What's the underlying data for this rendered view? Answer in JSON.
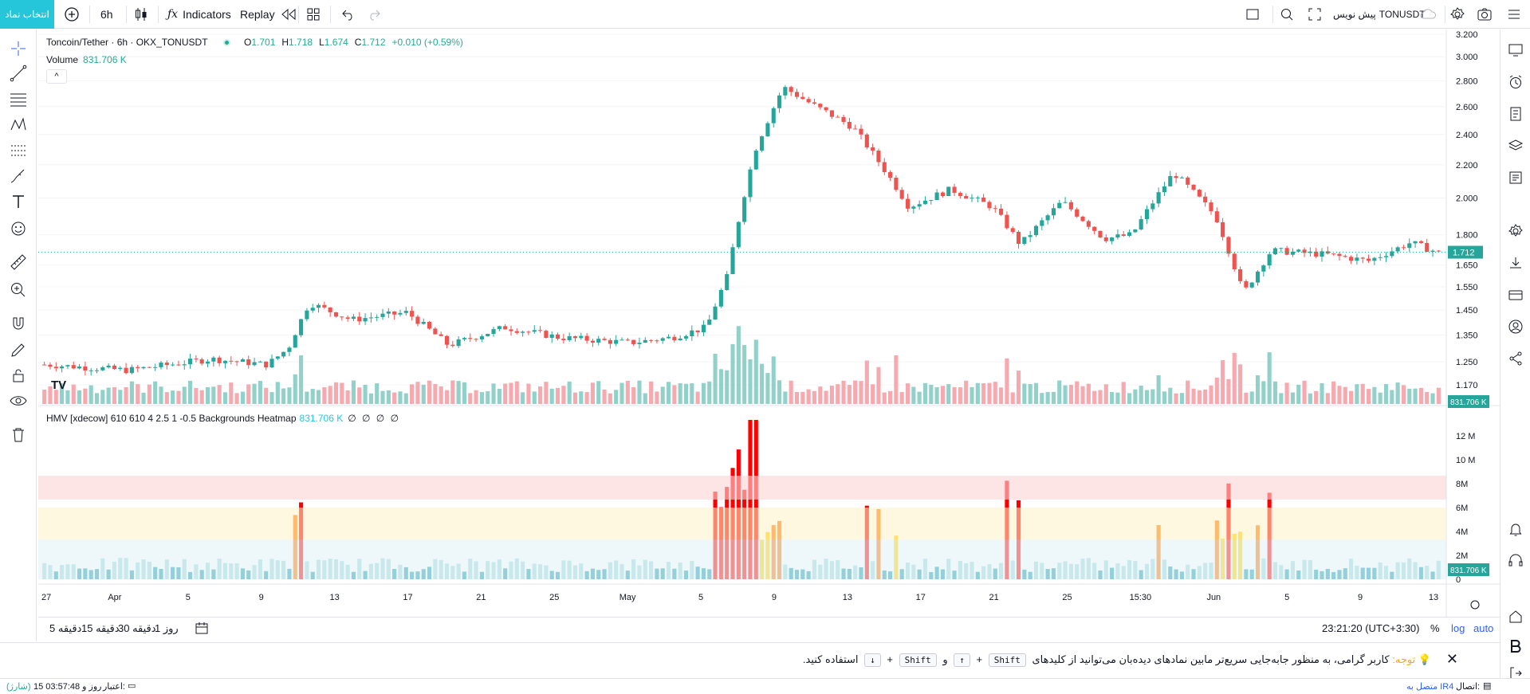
{
  "toolbar": {
    "select_symbol": "انتخاب نماد",
    "interval": "6h",
    "indicators": "Indicators",
    "replay": "Replay",
    "symbol_name": "TONUSDT",
    "symbol_sub": "پیش نویس"
  },
  "legend": {
    "symbol": "Toncoin/Tether · 6h · OKX_TONUSDT",
    "open_k": "O",
    "open": "1.701",
    "high_k": "H",
    "high": "1.718",
    "low_k": "L",
    "low": "1.674",
    "close_k": "C",
    "close": "1.712",
    "change": "+0.010 (+0.59%)",
    "volume_label": "Volume",
    "volume_value": "831.706 K",
    "collapse": "^",
    "hmv_label": "HMV [xdecow] 610 610 4 2.5 1 -0.5 Backgrounds Heatmap",
    "hmv_value": "831.706 K",
    "hmv_na": "∅ ∅ ∅ ∅",
    "logo": "TV"
  },
  "price_axis": {
    "ticks": [
      "3.200",
      "3.000",
      "2.800",
      "2.600",
      "2.400",
      "2.200",
      "2.000",
      "1.800",
      "1.650",
      "1.550",
      "1.450",
      "1.350",
      "1.250",
      "1.170"
    ],
    "current_price": "1.712",
    "volume_badge": "831.706 K"
  },
  "hmv_axis": {
    "ticks": [
      "12 M",
      "10 M",
      "8M",
      "6M",
      "4M",
      "2M",
      "0"
    ],
    "badge": "831.706 K"
  },
  "time_axis": {
    "labels": [
      "27",
      "Apr",
      "5",
      "9",
      "13",
      "17",
      "21",
      "25",
      "May",
      "5",
      "9",
      "13",
      "17",
      "21",
      "25",
      "15:30",
      "Jun",
      "5",
      "9",
      "13"
    ]
  },
  "bottombar": {
    "ranges": [
      "5 دقیقه",
      "15 دقیقه",
      "30 دقیقه",
      "1 روز"
    ],
    "clock": "23:21:20 (UTC+3:30)",
    "percent": "%",
    "log": "log",
    "auto": "auto"
  },
  "notice": {
    "label": "توجه:",
    "text1": "کاربر گرامی، به منظور جابه‌جایی سریع‌تر مابین نمادهای دیده‌بان می‌توانید از کلیدهای",
    "key_shift": "Shift",
    "plus": "+",
    "key_up": "↑",
    "and": "و",
    "key_down": "↓",
    "text2": "استفاده کنید."
  },
  "status": {
    "connection_label": "اتصال:",
    "connection_value": "متصل به IR4",
    "credit_label": "اعتبار:",
    "credit_value": "15 روز و 03:57:48",
    "charge": "(شارژ)"
  },
  "colors": {
    "up": "#26a69a",
    "down": "#ef5350",
    "up_vol": "#92d1c9",
    "down_vol": "#f7a9b0",
    "heat_red": "#ff0000",
    "heat_orange": "#ff7700",
    "heat_yellow": "#ffcf03",
    "heat_normal": "#a0d6dc",
    "heat_low": "#1f9cac",
    "accent": "#26c6da"
  },
  "chart_data": {
    "type": "candlestick",
    "title": "Toncoin/Tether · 6h · OKX_TONUSDT",
    "ylim": [
      1.17,
      3.2
    ],
    "scale": "log",
    "checkpoints": [
      {
        "t": 0,
        "p": 1.24
      },
      {
        "t": 0.06,
        "p": 1.22
      },
      {
        "t": 0.12,
        "p": 1.26
      },
      {
        "t": 0.16,
        "p": 1.24
      },
      {
        "t": 0.175,
        "p": 1.3
      },
      {
        "t": 0.19,
        "p": 1.48
      },
      {
        "t": 0.22,
        "p": 1.41
      },
      {
        "t": 0.26,
        "p": 1.44
      },
      {
        "t": 0.29,
        "p": 1.31
      },
      {
        "t": 0.33,
        "p": 1.38
      },
      {
        "t": 0.37,
        "p": 1.34
      },
      {
        "t": 0.42,
        "p": 1.32
      },
      {
        "t": 0.45,
        "p": 1.34
      },
      {
        "t": 0.475,
        "p": 1.38
      },
      {
        "t": 0.49,
        "p": 1.6
      },
      {
        "t": 0.51,
        "p": 2.3
      },
      {
        "t": 0.53,
        "p": 2.75
      },
      {
        "t": 0.55,
        "p": 2.62
      },
      {
        "t": 0.58,
        "p": 2.45
      },
      {
        "t": 0.6,
        "p": 2.2
      },
      {
        "t": 0.62,
        "p": 1.95
      },
      {
        "t": 0.65,
        "p": 2.05
      },
      {
        "t": 0.68,
        "p": 1.95
      },
      {
        "t": 0.7,
        "p": 1.75
      },
      {
        "t": 0.73,
        "p": 1.98
      },
      {
        "t": 0.76,
        "p": 1.78
      },
      {
        "t": 0.78,
        "p": 1.8
      },
      {
        "t": 0.81,
        "p": 2.15
      },
      {
        "t": 0.84,
        "p": 1.9
      },
      {
        "t": 0.86,
        "p": 1.52
      },
      {
        "t": 0.88,
        "p": 1.72
      },
      {
        "t": 0.92,
        "p": 1.7
      },
      {
        "t": 0.95,
        "p": 1.67
      },
      {
        "t": 0.98,
        "p": 1.76
      },
      {
        "t": 1.0,
        "p": 1.71
      }
    ],
    "candle_count": 240
  }
}
